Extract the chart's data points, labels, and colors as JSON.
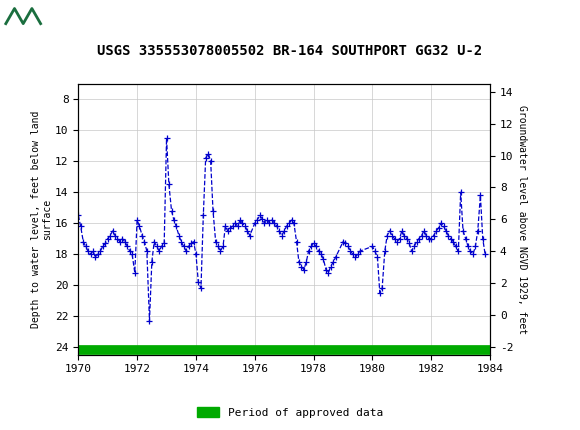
{
  "title": "USGS 335553078005502 BR-164 SOUTHPORT GG32 U-2",
  "ylabel_left": "Depth to water level, feet below land\nsurface",
  "ylabel_right": "Groundwater level above NGVD 1929, feet",
  "xlim": [
    1970,
    1984
  ],
  "ylim_left": [
    24.5,
    7.0
  ],
  "ylim_right": [
    -2.5,
    14.5
  ],
  "yticks_left": [
    8,
    10,
    12,
    14,
    16,
    18,
    20,
    22,
    24
  ],
  "yticks_right": [
    -2,
    0,
    2,
    4,
    6,
    8,
    10,
    12,
    14
  ],
  "xticks": [
    1970,
    1972,
    1974,
    1976,
    1978,
    1980,
    1982,
    1984
  ],
  "header_color": "#1a6e3e",
  "line_color": "#0000cc",
  "approved_color": "#00aa00",
  "background_color": "#ffffff",
  "grid_color": "#c8c8c8",
  "x": [
    1970.0,
    1970.08,
    1970.17,
    1970.25,
    1970.33,
    1970.42,
    1970.5,
    1970.58,
    1970.67,
    1970.75,
    1970.83,
    1970.92,
    1971.0,
    1971.08,
    1971.17,
    1971.25,
    1971.33,
    1971.42,
    1971.5,
    1971.58,
    1971.67,
    1971.75,
    1971.83,
    1971.92,
    1972.0,
    1972.08,
    1972.17,
    1972.25,
    1972.33,
    1972.42,
    1972.5,
    1972.58,
    1972.67,
    1972.75,
    1972.83,
    1972.92,
    1973.0,
    1973.08,
    1973.17,
    1973.25,
    1973.33,
    1973.42,
    1973.5,
    1973.58,
    1973.67,
    1973.75,
    1973.83,
    1973.92,
    1974.0,
    1974.08,
    1974.17,
    1974.25,
    1974.33,
    1974.42,
    1974.5,
    1974.58,
    1974.67,
    1974.75,
    1974.83,
    1974.92,
    1975.0,
    1975.08,
    1975.17,
    1975.25,
    1975.33,
    1975.42,
    1975.5,
    1975.58,
    1975.67,
    1975.75,
    1975.83,
    1976.0,
    1976.08,
    1976.17,
    1976.25,
    1976.33,
    1976.42,
    1976.5,
    1976.58,
    1976.67,
    1976.75,
    1976.83,
    1976.92,
    1977.0,
    1977.08,
    1977.17,
    1977.25,
    1977.33,
    1977.42,
    1977.5,
    1977.58,
    1977.67,
    1977.75,
    1977.83,
    1977.92,
    1978.0,
    1978.08,
    1978.17,
    1978.25,
    1978.33,
    1978.42,
    1978.5,
    1978.58,
    1978.67,
    1978.75,
    1979.0,
    1979.08,
    1979.17,
    1979.25,
    1979.33,
    1979.42,
    1979.5,
    1979.58,
    1980.0,
    1980.08,
    1980.17,
    1980.25,
    1980.33,
    1980.42,
    1980.5,
    1980.58,
    1980.67,
    1980.75,
    1980.83,
    1980.92,
    1981.0,
    1981.08,
    1981.17,
    1981.25,
    1981.33,
    1981.42,
    1981.5,
    1981.58,
    1981.67,
    1981.75,
    1981.83,
    1981.92,
    1982.0,
    1982.08,
    1982.17,
    1982.25,
    1982.33,
    1982.42,
    1982.5,
    1982.58,
    1982.67,
    1982.75,
    1982.83,
    1982.92,
    1983.0,
    1983.08,
    1983.17,
    1983.25,
    1983.33,
    1983.42,
    1983.5,
    1983.58,
    1983.67,
    1983.75,
    1983.83
  ],
  "y": [
    15.5,
    16.2,
    17.2,
    17.5,
    17.8,
    18.0,
    17.8,
    18.2,
    18.0,
    17.8,
    17.5,
    17.3,
    17.0,
    16.8,
    16.5,
    16.8,
    17.0,
    17.2,
    17.0,
    17.2,
    17.5,
    17.8,
    18.0,
    19.2,
    15.8,
    16.2,
    16.8,
    17.2,
    17.8,
    22.3,
    18.5,
    17.2,
    17.5,
    17.8,
    17.5,
    17.3,
    10.5,
    13.5,
    15.2,
    15.8,
    16.2,
    16.8,
    17.2,
    17.5,
    17.8,
    17.5,
    17.3,
    17.2,
    18.0,
    19.8,
    20.2,
    15.5,
    11.8,
    11.5,
    12.0,
    15.2,
    17.2,
    17.5,
    17.8,
    17.5,
    16.2,
    16.5,
    16.3,
    16.2,
    16.0,
    16.2,
    15.8,
    16.0,
    16.2,
    16.5,
    16.8,
    16.0,
    15.8,
    15.5,
    15.7,
    16.0,
    15.8,
    16.0,
    15.8,
    16.0,
    16.2,
    16.5,
    16.8,
    16.5,
    16.2,
    16.0,
    15.8,
    16.0,
    17.2,
    18.5,
    18.8,
    19.0,
    18.5,
    17.8,
    17.5,
    17.3,
    17.5,
    17.8,
    18.0,
    18.3,
    19.0,
    19.2,
    18.8,
    18.5,
    18.2,
    17.2,
    17.3,
    17.5,
    17.8,
    18.0,
    18.2,
    18.0,
    17.8,
    17.5,
    17.8,
    18.2,
    20.5,
    20.2,
    17.8,
    16.8,
    16.5,
    16.8,
    17.0,
    17.2,
    17.0,
    16.5,
    16.8,
    17.0,
    17.3,
    17.8,
    17.5,
    17.2,
    17.0,
    16.8,
    16.5,
    16.8,
    17.0,
    17.0,
    16.8,
    16.5,
    16.3,
    16.0,
    16.2,
    16.5,
    16.8,
    17.0,
    17.2,
    17.5,
    17.8,
    14.0,
    16.5,
    17.0,
    17.5,
    17.8,
    18.0,
    17.5,
    16.5,
    14.2,
    17.0,
    18.0
  ],
  "approved_xstart": 1970.0,
  "approved_xend": 1984.0,
  "approved_y": 24.2,
  "legend_label": "Period of approved data"
}
